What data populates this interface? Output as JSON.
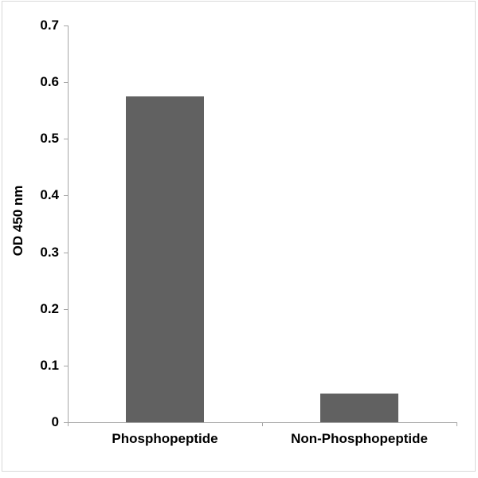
{
  "chart_data": {
    "type": "bar",
    "title": "",
    "categories": [
      "Phosphopeptide",
      "Non-Phosphopeptide"
    ],
    "values": [
      0.575,
      0.05
    ],
    "xlabel": "",
    "ylabel": "OD 450 nm",
    "ylim": [
      0,
      0.7
    ],
    "ytick_step": 0.1,
    "ytick_labels": [
      "0",
      "0.1",
      "0.2",
      "0.3",
      "0.4",
      "0.5",
      "0.6",
      "0.7"
    ],
    "grid": false,
    "legend": null,
    "bar_color": "#616161",
    "axis_color": "#a6a6a6",
    "text_color": "#000000",
    "background_color": "#ffffff",
    "frame_border_color": "#d9d9d9"
  }
}
